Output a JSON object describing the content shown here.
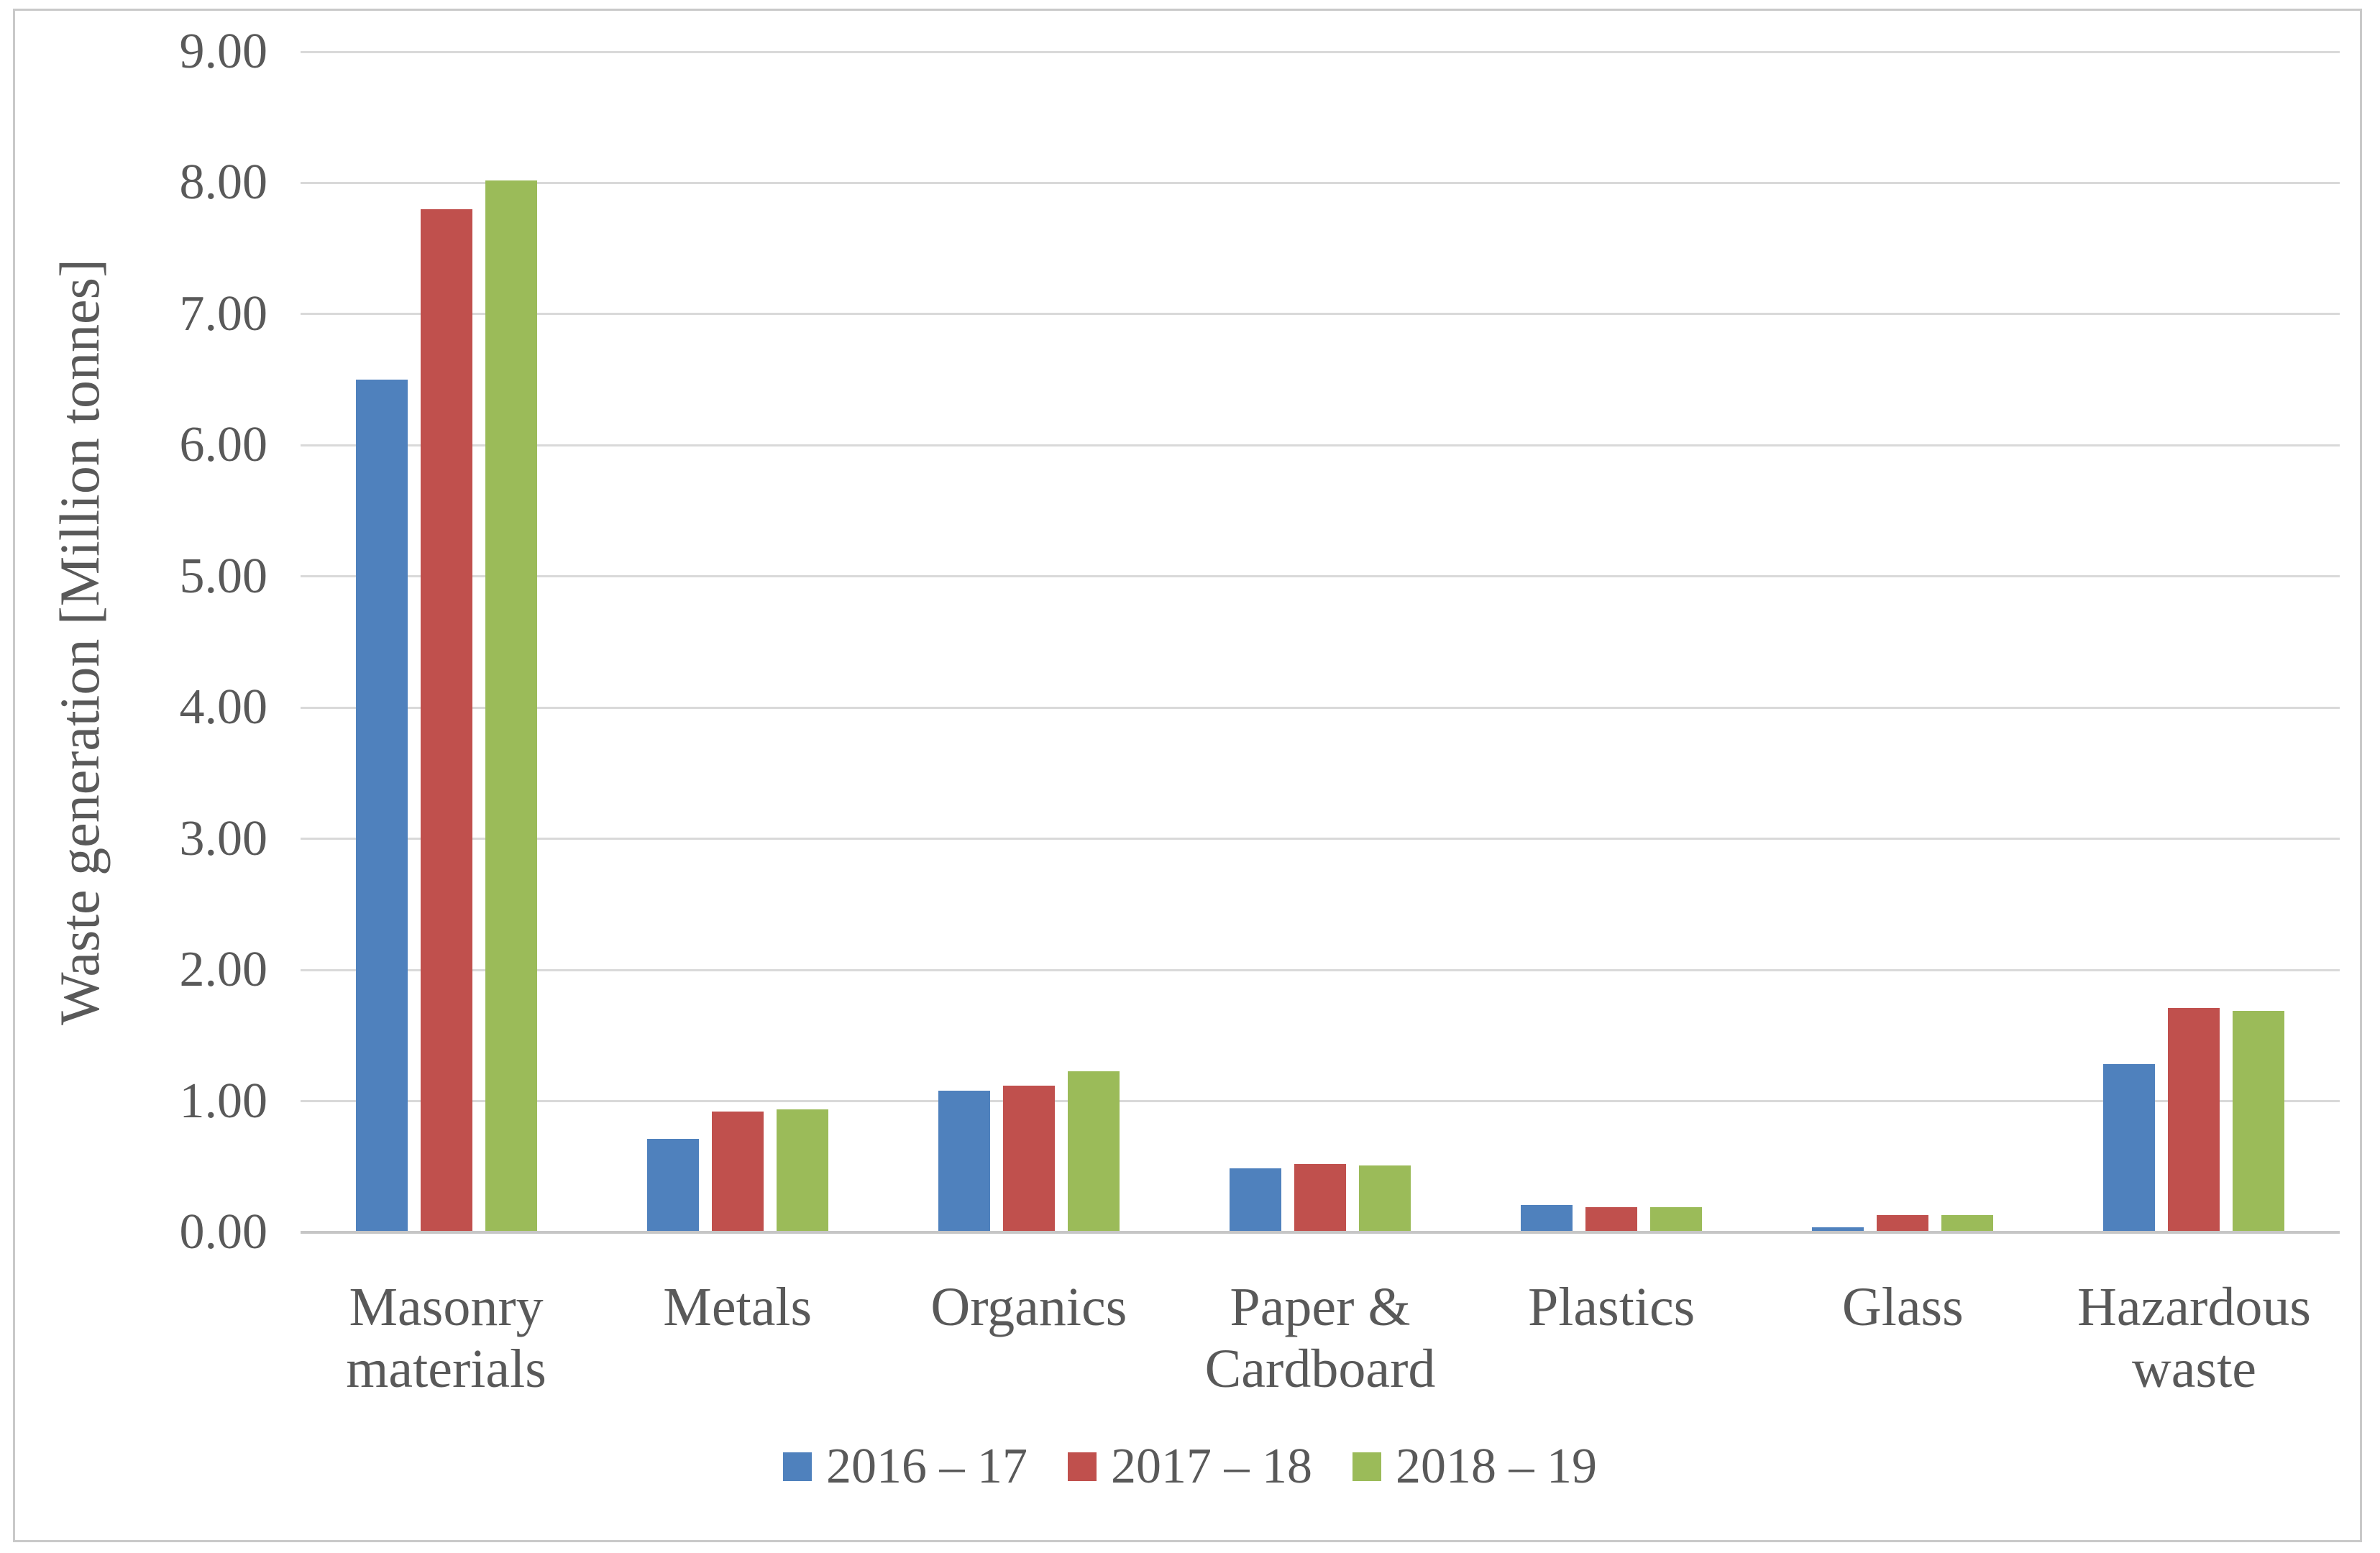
{
  "chart_data": {
    "type": "bar",
    "title": "",
    "y_axis_title": "Waste generation [Million tonnes]",
    "xlabel": "",
    "ylabel": "Waste generation [Million tonnes]",
    "ylim": [
      0,
      9
    ],
    "y_tick_labels": [
      "0.00",
      "1.00",
      "2.00",
      "3.00",
      "4.00",
      "5.00",
      "6.00",
      "7.00",
      "8.00",
      "9.00"
    ],
    "grid": true,
    "legend_position": "bottom",
    "categories": [
      "Masonry materials",
      "Metals",
      "Organics",
      "Paper & Cardboard",
      "Plastics",
      "Glass",
      "Hazardous waste"
    ],
    "series": [
      {
        "name": "2016 – 17",
        "color": "#4F81BD",
        "values": [
          6.5,
          0.71,
          1.08,
          0.49,
          0.21,
          0.04,
          1.28
        ]
      },
      {
        "name": "2017 – 18",
        "color": "#C0504D",
        "values": [
          7.8,
          0.92,
          1.12,
          0.52,
          0.19,
          0.13,
          1.71
        ]
      },
      {
        "name": "2018 – 19",
        "color": "#9BBB59",
        "values": [
          8.02,
          0.94,
          1.23,
          0.51,
          0.19,
          0.13,
          1.69
        ]
      }
    ],
    "colors": {
      "text": "#595959",
      "gridline": "#D9D9D9",
      "axis_line": "#C6C6C6",
      "frame_border": "#C9C9C9",
      "background": "#FFFFFF"
    }
  }
}
